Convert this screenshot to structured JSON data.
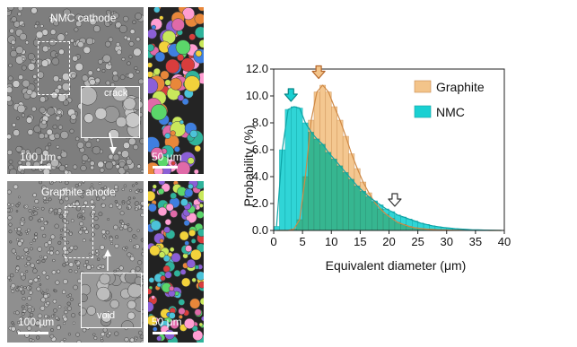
{
  "panels": {
    "nmc_sem": {
      "title": "NMC cathode",
      "inset_label": "crack",
      "scale_label": "100 μm"
    },
    "nmc_seg": {
      "scale_label": "50 μm"
    },
    "graphite_sem": {
      "title": "Graphite anode",
      "inset_label": "void",
      "scale_label": "100 μm"
    },
    "graphite_seg": {
      "scale_label": "50 μm"
    }
  },
  "chart_data": {
    "type": "bar",
    "xlabel": "Equivalent diameter (μm)",
    "ylabel": "Probability (%)",
    "xlim": [
      0,
      40
    ],
    "ylim": [
      0,
      12
    ],
    "xticks": [
      "0",
      "5",
      "10",
      "15",
      "20",
      "25",
      "30",
      "35",
      "40"
    ],
    "yticks": [
      "0.0",
      "2.0",
      "4.0",
      "6.0",
      "8.0",
      "10.0",
      "12.0"
    ],
    "bin_width": 1,
    "bin_starts": [
      0,
      1,
      2,
      3,
      4,
      5,
      6,
      7,
      8,
      9,
      10,
      11,
      12,
      13,
      14,
      15,
      16,
      17,
      18,
      19,
      20,
      21,
      22,
      23,
      24,
      25,
      26,
      27,
      28,
      29,
      30,
      31,
      32,
      33,
      34,
      35,
      36,
      37,
      38,
      39
    ],
    "legend_position": "top-right",
    "series": [
      {
        "name": "Graphite",
        "color": "#f3c48a",
        "values": [
          0,
          0,
          0,
          0.1,
          0.8,
          4.0,
          8.2,
          10.3,
          10.8,
          10.3,
          9.2,
          8.2,
          7.0,
          5.7,
          4.6,
          3.6,
          2.8,
          2.1,
          1.6,
          1.2,
          0.9,
          0.6,
          0.45,
          0.3,
          0.2,
          0.15,
          0.1,
          0.08,
          0.05,
          0.04,
          0.03,
          0.02,
          0.02,
          0.01,
          0.01,
          0.01,
          0.01,
          0,
          0,
          0
        ]
      },
      {
        "name": "NMC",
        "color": "#19d0d2",
        "values": [
          0.3,
          6.0,
          9.0,
          9.2,
          9.1,
          8.0,
          7.3,
          6.8,
          6.4,
          5.8,
          5.3,
          4.8,
          4.3,
          3.8,
          3.3,
          2.9,
          2.5,
          2.2,
          1.9,
          1.6,
          1.4,
          1.15,
          1.0,
          0.85,
          0.7,
          0.55,
          0.45,
          0.35,
          0.28,
          0.22,
          0.17,
          0.13,
          0.1,
          0.07,
          0.05,
          0.04,
          0.03,
          0.02,
          0.01,
          0
        ]
      }
    ],
    "overlap_color": "#37b48c"
  }
}
